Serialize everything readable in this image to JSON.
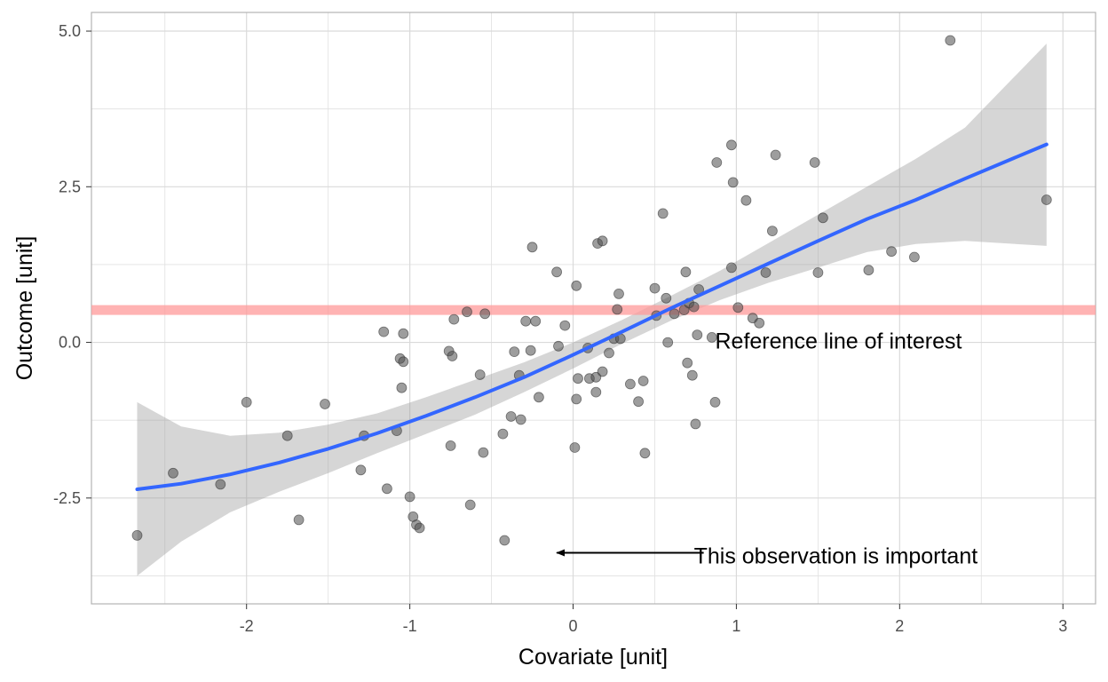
{
  "chart_data": {
    "type": "scatter",
    "title": "",
    "xlabel": "Covariate [unit]",
    "ylabel": "Outcome [unit]",
    "xlim": [
      -2.95,
      3.2
    ],
    "ylim": [
      -4.2,
      5.3
    ],
    "x_ticks": [
      -2,
      -1,
      0,
      1,
      2,
      3
    ],
    "x_tick_labels": [
      "-2",
      "-1",
      "0",
      "1",
      "2",
      "3"
    ],
    "y_ticks": [
      -2.5,
      0.0,
      2.5,
      5.0
    ],
    "y_tick_labels": [
      "-2.5",
      "0.0",
      "2.5",
      "5.0"
    ],
    "grid": true,
    "legend": "none",
    "colors": {
      "points": "#4d4d4d",
      "smooth_line": "#3366ff",
      "confidence_band": "#999999",
      "reference_line": "#ff9999",
      "grid": "#e0e0e0",
      "panel_border": "#b3b3b3"
    },
    "points": [
      [
        -2.67,
        -3.1
      ],
      [
        -2.45,
        -2.1
      ],
      [
        -2.16,
        -2.28
      ],
      [
        -2.0,
        -0.96
      ],
      [
        -1.75,
        -1.5
      ],
      [
        -1.68,
        -2.85
      ],
      [
        -1.52,
        -0.99
      ],
      [
        -1.3,
        -2.05
      ],
      [
        -1.28,
        -1.5
      ],
      [
        -1.16,
        0.17
      ],
      [
        -1.14,
        -2.35
      ],
      [
        -1.08,
        -1.42
      ],
      [
        -1.06,
        -0.26
      ],
      [
        -1.05,
        -0.73
      ],
      [
        -1.04,
        0.14
      ],
      [
        -1.04,
        -0.31
      ],
      [
        -1.0,
        -2.48
      ],
      [
        -0.98,
        -2.8
      ],
      [
        -0.96,
        -2.93
      ],
      [
        -0.94,
        -2.98
      ],
      [
        -0.76,
        -0.14
      ],
      [
        -0.75,
        -1.66
      ],
      [
        -0.74,
        -0.22
      ],
      [
        -0.73,
        0.37
      ],
      [
        -0.65,
        0.49
      ],
      [
        -0.63,
        -2.61
      ],
      [
        -0.57,
        -0.52
      ],
      [
        -0.55,
        -1.77
      ],
      [
        -0.54,
        0.46
      ],
      [
        -0.43,
        -1.47
      ],
      [
        -0.42,
        -3.18
      ],
      [
        -0.38,
        -1.19
      ],
      [
        -0.36,
        -0.15
      ],
      [
        -0.33,
        -0.53
      ],
      [
        -0.32,
        -1.24
      ],
      [
        -0.29,
        0.34
      ],
      [
        -0.26,
        -0.13
      ],
      [
        -0.25,
        1.53
      ],
      [
        -0.23,
        0.34
      ],
      [
        -0.21,
        -0.88
      ],
      [
        -0.1,
        1.13
      ],
      [
        -0.09,
        -0.06
      ],
      [
        -0.05,
        0.27
      ],
      [
        0.01,
        -1.69
      ],
      [
        0.02,
        -0.91
      ],
      [
        0.02,
        0.91
      ],
      [
        0.03,
        -0.58
      ],
      [
        0.09,
        -0.09
      ],
      [
        0.1,
        -0.58
      ],
      [
        0.14,
        -0.56
      ],
      [
        0.14,
        -0.8
      ],
      [
        0.15,
        1.59
      ],
      [
        0.18,
        1.63
      ],
      [
        0.18,
        -0.47
      ],
      [
        0.22,
        -0.17
      ],
      [
        0.25,
        0.06
      ],
      [
        0.27,
        0.53
      ],
      [
        0.28,
        0.78
      ],
      [
        0.29,
        0.06
      ],
      [
        0.35,
        -0.67
      ],
      [
        0.4,
        -0.95
      ],
      [
        0.43,
        -0.62
      ],
      [
        0.44,
        -1.78
      ],
      [
        0.5,
        0.87
      ],
      [
        0.51,
        0.43
      ],
      [
        0.55,
        2.07
      ],
      [
        0.57,
        0.71
      ],
      [
        0.58,
        0.0
      ],
      [
        0.62,
        0.46
      ],
      [
        0.68,
        0.52
      ],
      [
        0.69,
        1.13
      ],
      [
        0.7,
        -0.33
      ],
      [
        0.71,
        0.63
      ],
      [
        0.73,
        -0.53
      ],
      [
        0.74,
        0.57
      ],
      [
        0.75,
        -1.31
      ],
      [
        0.76,
        0.12
      ],
      [
        0.77,
        0.85
      ],
      [
        0.85,
        0.08
      ],
      [
        0.87,
        -0.96
      ],
      [
        0.88,
        2.89
      ],
      [
        0.97,
        3.17
      ],
      [
        0.97,
        1.2
      ],
      [
        0.98,
        2.57
      ],
      [
        1.01,
        0.56
      ],
      [
        1.06,
        2.28
      ],
      [
        1.1,
        0.39
      ],
      [
        1.14,
        0.31
      ],
      [
        1.18,
        1.12
      ],
      [
        1.22,
        1.79
      ],
      [
        1.24,
        3.01
      ],
      [
        1.48,
        2.89
      ],
      [
        1.5,
        1.12
      ],
      [
        1.53,
        2.0
      ],
      [
        1.81,
        1.16
      ],
      [
        1.95,
        1.46
      ],
      [
        2.09,
        1.37
      ],
      [
        2.31,
        4.85
      ],
      [
        2.9,
        2.29
      ]
    ],
    "smooth_curve": [
      [
        -2.67,
        -2.36
      ],
      [
        -2.4,
        -2.27
      ],
      [
        -2.1,
        -2.12
      ],
      [
        -1.8,
        -1.93
      ],
      [
        -1.5,
        -1.71
      ],
      [
        -1.2,
        -1.46
      ],
      [
        -0.9,
        -1.18
      ],
      [
        -0.6,
        -0.88
      ],
      [
        -0.3,
        -0.56
      ],
      [
        0.0,
        -0.2
      ],
      [
        0.3,
        0.17
      ],
      [
        0.6,
        0.55
      ],
      [
        0.9,
        0.91
      ],
      [
        1.2,
        1.27
      ],
      [
        1.5,
        1.63
      ],
      [
        1.8,
        1.98
      ],
      [
        2.1,
        2.29
      ],
      [
        2.4,
        2.63
      ],
      [
        2.9,
        3.18
      ]
    ],
    "confidence_upper": [
      [
        -2.67,
        -0.96
      ],
      [
        -2.4,
        -1.35
      ],
      [
        -2.1,
        -1.5
      ],
      [
        -1.8,
        -1.45
      ],
      [
        -1.5,
        -1.32
      ],
      [
        -1.2,
        -1.14
      ],
      [
        -0.9,
        -0.88
      ],
      [
        -0.6,
        -0.6
      ],
      [
        -0.3,
        -0.32
      ],
      [
        0.0,
        0.0
      ],
      [
        0.3,
        0.36
      ],
      [
        0.6,
        0.75
      ],
      [
        0.9,
        1.15
      ],
      [
        1.2,
        1.6
      ],
      [
        1.5,
        2.05
      ],
      [
        1.8,
        2.5
      ],
      [
        2.1,
        2.95
      ],
      [
        2.4,
        3.45
      ],
      [
        2.9,
        4.8
      ]
    ],
    "confidence_lower": [
      [
        -2.67,
        -3.75
      ],
      [
        -2.4,
        -3.2
      ],
      [
        -2.1,
        -2.73
      ],
      [
        -1.8,
        -2.4
      ],
      [
        -1.5,
        -2.1
      ],
      [
        -1.2,
        -1.78
      ],
      [
        -0.9,
        -1.47
      ],
      [
        -0.6,
        -1.16
      ],
      [
        -0.3,
        -0.8
      ],
      [
        0.0,
        -0.42
      ],
      [
        0.3,
        -0.02
      ],
      [
        0.6,
        0.35
      ],
      [
        0.9,
        0.68
      ],
      [
        1.2,
        0.96
      ],
      [
        1.5,
        1.2
      ],
      [
        1.8,
        1.45
      ],
      [
        2.1,
        1.58
      ],
      [
        2.4,
        1.63
      ],
      [
        2.9,
        1.55
      ]
    ],
    "reference_line": {
      "y": 0.52,
      "label": "Reference line of interest"
    },
    "annotation": {
      "label": "This observation is important",
      "arrow_from": [
        0.8,
        -3.38
      ],
      "arrow_to": [
        -0.1,
        -3.38
      ]
    }
  }
}
